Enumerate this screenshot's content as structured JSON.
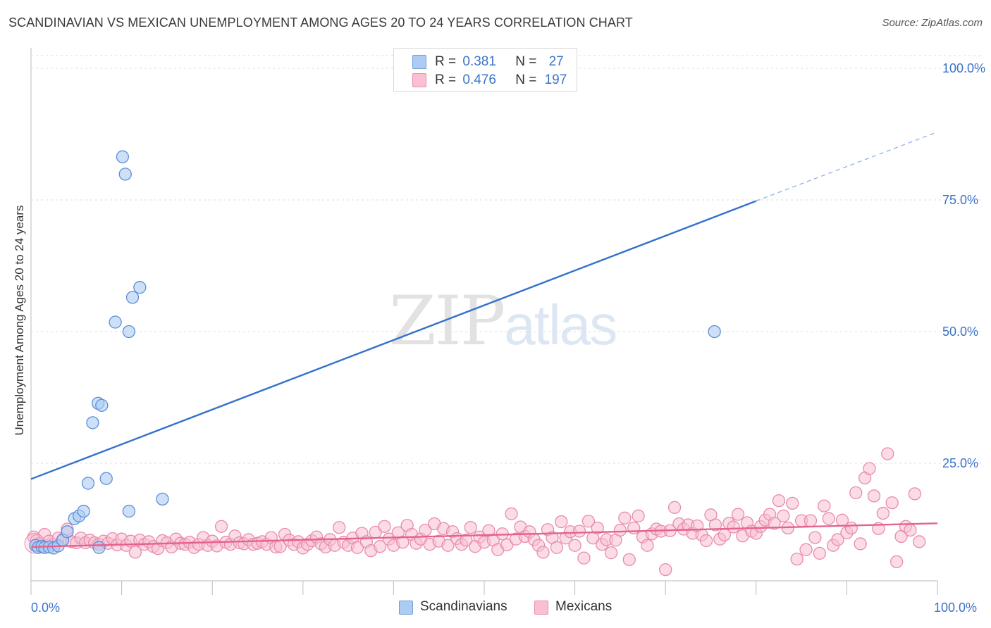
{
  "title": "SCANDINAVIAN VS MEXICAN UNEMPLOYMENT AMONG AGES 20 TO 24 YEARS CORRELATION CHART",
  "source": "Source: ZipAtlas.com",
  "watermark": {
    "zip": "ZIP",
    "atlas": "atlas"
  },
  "legend": {
    "r_label": "R =",
    "n_label": "N =",
    "rows": [
      {
        "name": "Scandinavians",
        "r": "0.381",
        "n": "27",
        "fill": "#aecbf2",
        "stroke": "#6f9fe0"
      },
      {
        "name": "Mexicans",
        "r": "0.476",
        "n": "197",
        "fill": "#f8c0d2",
        "stroke": "#e98bab"
      }
    ]
  },
  "chart_data": {
    "type": "scatter",
    "title": "SCANDINAVIAN VS MEXICAN UNEMPLOYMENT AMONG AGES 20 TO 24 YEARS CORRELATION CHART",
    "xlabel": "",
    "ylabel": "Unemployment Among Ages 20 to 24 years",
    "xlim": [
      0,
      100
    ],
    "ylim": [
      0,
      100
    ],
    "x_tick_labels": {
      "left": "0.0%",
      "right": "100.0%"
    },
    "y_ticks": [
      {
        "value": 25,
        "label": "25.0%"
      },
      {
        "value": 50,
        "label": "50.0%"
      },
      {
        "value": 75,
        "label": "75.0%"
      },
      {
        "value": 100,
        "label": "100.0%"
      }
    ],
    "grid": true,
    "colors": {
      "scandinavians": "#3672cc",
      "mexicans": "#e4628f",
      "point_blue_fill": "#aecbf2",
      "point_blue_stroke": "#5b8fdb",
      "point_pink_fill": "#f8c0d2",
      "point_pink_stroke": "#e98bab"
    },
    "series": [
      {
        "name": "Scandinavians",
        "trend": {
          "x0": 0,
          "y0": 22.0,
          "x1": 80,
          "y1": 74.8,
          "dashed_to_x": 100,
          "dashed_to_y": 87.9
        },
        "points": [
          [
            0.5,
            9.4
          ],
          [
            0.8,
            9.0
          ],
          [
            1.2,
            9.2
          ],
          [
            1.5,
            9.0
          ],
          [
            2.0,
            9.1
          ],
          [
            2.5,
            8.9
          ],
          [
            3.0,
            9.3
          ],
          [
            3.5,
            10.4
          ],
          [
            4.0,
            12.0
          ],
          [
            4.8,
            14.5
          ],
          [
            5.3,
            15.0
          ],
          [
            5.8,
            15.9
          ],
          [
            6.3,
            21.2
          ],
          [
            6.8,
            32.7
          ],
          [
            7.4,
            36.4
          ],
          [
            7.8,
            36.0
          ],
          [
            8.3,
            22.1
          ],
          [
            9.3,
            51.8
          ],
          [
            10.8,
            50.0
          ],
          [
            10.1,
            83.2
          ],
          [
            10.4,
            79.9
          ],
          [
            11.2,
            56.5
          ],
          [
            12.0,
            58.4
          ],
          [
            10.8,
            15.9
          ],
          [
            14.5,
            18.2
          ],
          [
            75.4,
            50.0
          ],
          [
            7.5,
            9.0
          ]
        ]
      },
      {
        "name": "Mexicans",
        "trend": {
          "x0": 0,
          "y0": 9.1,
          "x1": 100,
          "y1": 13.6
        },
        "points": [
          [
            0.3,
            11.0
          ],
          [
            0.6,
            10.3
          ],
          [
            1.0,
            9.8
          ],
          [
            1.5,
            11.5
          ],
          [
            2.0,
            10.2
          ],
          [
            2.5,
            9.6
          ],
          [
            3.0,
            10.8
          ],
          [
            3.5,
            10.5
          ],
          [
            4.0,
            12.5
          ],
          [
            4.5,
            10.1
          ],
          [
            5.0,
            9.9
          ],
          [
            5.5,
            10.8
          ],
          [
            6.0,
            9.9
          ],
          [
            6.5,
            10.4
          ],
          [
            7.0,
            9.9
          ],
          [
            7.5,
            9.6
          ],
          [
            8.0,
            10.2
          ],
          [
            8.5,
            9.8
          ],
          [
            9.0,
            10.7
          ],
          [
            9.5,
            9.5
          ],
          [
            10.0,
            10.6
          ],
          [
            10.5,
            9.4
          ],
          [
            11.0,
            10.2
          ],
          [
            11.5,
            8.1
          ],
          [
            12.0,
            10.4
          ],
          [
            12.5,
            9.6
          ],
          [
            13.0,
            10.1
          ],
          [
            13.5,
            9.2
          ],
          [
            14.0,
            8.8
          ],
          [
            14.5,
            10.3
          ],
          [
            15.0,
            9.9
          ],
          [
            15.5,
            9.1
          ],
          [
            16.0,
            10.6
          ],
          [
            16.5,
            9.8
          ],
          [
            17.0,
            9.6
          ],
          [
            17.5,
            10.0
          ],
          [
            18.0,
            9.0
          ],
          [
            18.5,
            9.6
          ],
          [
            19.0,
            10.9
          ],
          [
            19.5,
            9.4
          ],
          [
            20.0,
            10.2
          ],
          [
            20.5,
            9.3
          ],
          [
            21.0,
            13.0
          ],
          [
            21.5,
            10.0
          ],
          [
            22.0,
            9.6
          ],
          [
            22.5,
            11.2
          ],
          [
            23.0,
            9.9
          ],
          [
            23.5,
            9.7
          ],
          [
            24.0,
            10.5
          ],
          [
            24.5,
            9.6
          ],
          [
            25.0,
            9.8
          ],
          [
            25.5,
            10.1
          ],
          [
            26.0,
            9.6
          ],
          [
            26.5,
            10.9
          ],
          [
            27.0,
            9.1
          ],
          [
            27.5,
            9.2
          ],
          [
            28.0,
            11.5
          ],
          [
            28.5,
            10.4
          ],
          [
            29.0,
            9.6
          ],
          [
            29.5,
            10.1
          ],
          [
            30.0,
            8.9
          ],
          [
            30.5,
            9.6
          ],
          [
            31.0,
            10.3
          ],
          [
            31.5,
            11.0
          ],
          [
            32.0,
            9.7
          ],
          [
            32.5,
            9.1
          ],
          [
            33.0,
            10.5
          ],
          [
            33.5,
            9.4
          ],
          [
            34.0,
            12.8
          ],
          [
            34.5,
            10.0
          ],
          [
            35.0,
            9.4
          ],
          [
            35.5,
            10.8
          ],
          [
            36.0,
            9.0
          ],
          [
            36.5,
            11.7
          ],
          [
            37.0,
            10.1
          ],
          [
            37.5,
            8.4
          ],
          [
            38.0,
            11.9
          ],
          [
            38.5,
            9.2
          ],
          [
            39.0,
            13.0
          ],
          [
            39.5,
            10.6
          ],
          [
            40.0,
            9.4
          ],
          [
            40.5,
            11.8
          ],
          [
            41.0,
            10.0
          ],
          [
            41.5,
            13.2
          ],
          [
            42.0,
            11.5
          ],
          [
            42.5,
            9.8
          ],
          [
            43.0,
            10.6
          ],
          [
            43.5,
            12.3
          ],
          [
            44.0,
            9.6
          ],
          [
            44.5,
            13.5
          ],
          [
            45.0,
            10.2
          ],
          [
            45.5,
            12.6
          ],
          [
            46.0,
            9.4
          ],
          [
            46.5,
            12.0
          ],
          [
            47.0,
            10.7
          ],
          [
            47.5,
            9.6
          ],
          [
            48.0,
            10.4
          ],
          [
            48.5,
            12.8
          ],
          [
            49.0,
            9.2
          ],
          [
            49.5,
            11.0
          ],
          [
            50.0,
            10.0
          ],
          [
            50.5,
            12.2
          ],
          [
            51.0,
            10.4
          ],
          [
            51.5,
            8.6
          ],
          [
            52.0,
            11.6
          ],
          [
            52.5,
            9.5
          ],
          [
            53.0,
            15.4
          ],
          [
            53.5,
            10.6
          ],
          [
            54.0,
            12.9
          ],
          [
            54.5,
            11.1
          ],
          [
            55.0,
            12.0
          ],
          [
            55.5,
            10.5
          ],
          [
            56.0,
            9.4
          ],
          [
            56.5,
            8.1
          ],
          [
            57.0,
            12.4
          ],
          [
            57.5,
            10.9
          ],
          [
            58.0,
            9.0
          ],
          [
            58.5,
            13.9
          ],
          [
            59.0,
            10.8
          ],
          [
            59.5,
            12.0
          ],
          [
            60.0,
            9.4
          ],
          [
            60.5,
            12.1
          ],
          [
            61.0,
            7.0
          ],
          [
            61.5,
            14.0
          ],
          [
            62.0,
            10.8
          ],
          [
            62.5,
            12.7
          ],
          [
            63.0,
            9.6
          ],
          [
            63.5,
            10.5
          ],
          [
            64.0,
            8.0
          ],
          [
            64.5,
            10.4
          ],
          [
            65.0,
            12.3
          ],
          [
            65.5,
            14.6
          ],
          [
            66.0,
            6.7
          ],
          [
            66.5,
            12.7
          ],
          [
            67.0,
            15.0
          ],
          [
            67.5,
            11.0
          ],
          [
            68.0,
            9.4
          ],
          [
            68.5,
            11.6
          ],
          [
            69.0,
            12.5
          ],
          [
            69.5,
            12.1
          ],
          [
            70.0,
            4.8
          ],
          [
            70.5,
            12.2
          ],
          [
            71.0,
            16.6
          ],
          [
            71.5,
            13.5
          ],
          [
            72.0,
            12.5
          ],
          [
            72.5,
            13.3
          ],
          [
            73.0,
            11.7
          ],
          [
            73.5,
            13.1
          ],
          [
            74.0,
            11.4
          ],
          [
            74.5,
            10.3
          ],
          [
            75.0,
            15.2
          ],
          [
            75.5,
            13.3
          ],
          [
            76.0,
            10.6
          ],
          [
            76.5,
            11.4
          ],
          [
            77.0,
            13.6
          ],
          [
            77.5,
            12.9
          ],
          [
            78.0,
            15.3
          ],
          [
            78.5,
            11.2
          ],
          [
            79.0,
            13.7
          ],
          [
            79.5,
            12.1
          ],
          [
            80.0,
            11.7
          ],
          [
            80.5,
            13.0
          ],
          [
            81.0,
            14.2
          ],
          [
            81.5,
            15.3
          ],
          [
            82.0,
            13.6
          ],
          [
            82.5,
            17.9
          ],
          [
            83.0,
            15.0
          ],
          [
            83.5,
            12.7
          ],
          [
            84.0,
            17.4
          ],
          [
            84.5,
            6.8
          ],
          [
            85.0,
            14.1
          ],
          [
            85.5,
            8.6
          ],
          [
            86.0,
            14.1
          ],
          [
            86.5,
            10.9
          ],
          [
            87.0,
            7.9
          ],
          [
            87.5,
            16.9
          ],
          [
            88.0,
            14.5
          ],
          [
            88.5,
            9.4
          ],
          [
            89.0,
            10.5
          ],
          [
            89.5,
            14.2
          ],
          [
            90.0,
            11.8
          ],
          [
            90.5,
            12.7
          ],
          [
            91.0,
            19.4
          ],
          [
            91.5,
            9.7
          ],
          [
            92.0,
            22.2
          ],
          [
            92.5,
            24.0
          ],
          [
            93.0,
            18.8
          ],
          [
            93.5,
            12.6
          ],
          [
            94.0,
            15.5
          ],
          [
            94.5,
            26.8
          ],
          [
            95.0,
            17.5
          ],
          [
            95.5,
            6.3
          ],
          [
            96.0,
            11.1
          ],
          [
            96.5,
            13.0
          ],
          [
            97.0,
            12.3
          ],
          [
            97.5,
            19.2
          ],
          [
            98.0,
            10.1
          ]
        ]
      }
    ]
  },
  "bottom_legend": [
    {
      "label": "Scandinavians"
    },
    {
      "label": "Mexicans"
    }
  ]
}
